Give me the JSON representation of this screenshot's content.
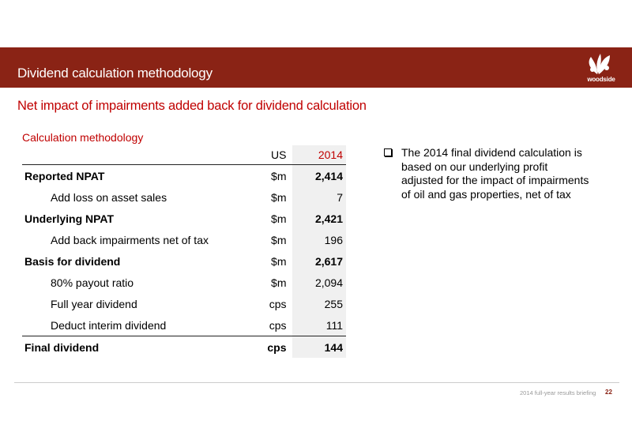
{
  "header": {
    "title": "Dividend calculation methodology",
    "logo_text": "woodside",
    "icon": "woodside-leaf-logo"
  },
  "subtitle": "Net impact of impairments added back for dividend calculation",
  "calc": {
    "heading": "Calculation methodology",
    "columns": {
      "unit": "US",
      "value": "2014"
    },
    "rows": [
      {
        "label": "Reported NPAT",
        "unit": "$m",
        "value": "2,414"
      },
      {
        "label": "Add loss on asset sales",
        "unit": "$m",
        "value": "7"
      },
      {
        "label": "Underlying NPAT",
        "unit": "$m",
        "value": "2,421"
      },
      {
        "label": "Add back impairments net of tax",
        "unit": "$m",
        "value": "196"
      },
      {
        "label": "Basis for dividend",
        "unit": "$m",
        "value": "2,617"
      },
      {
        "label": "80% payout ratio",
        "unit": "$m",
        "value": "2,094"
      },
      {
        "label": "Full year dividend",
        "unit": "cps",
        "value": "255"
      },
      {
        "label": "Deduct interim dividend",
        "unit": "cps",
        "value": "111"
      },
      {
        "label": "Final dividend",
        "unit": "cps",
        "value": "144"
      }
    ]
  },
  "bullet": {
    "text": "The 2014 final dividend calculation is based on our underlying profit adjusted for the impact of impairments of oil and gas properties, net of tax",
    "icon": "checkbox-bullet-icon"
  },
  "footer": {
    "text": "2014 full-year results briefing",
    "page": "22"
  }
}
